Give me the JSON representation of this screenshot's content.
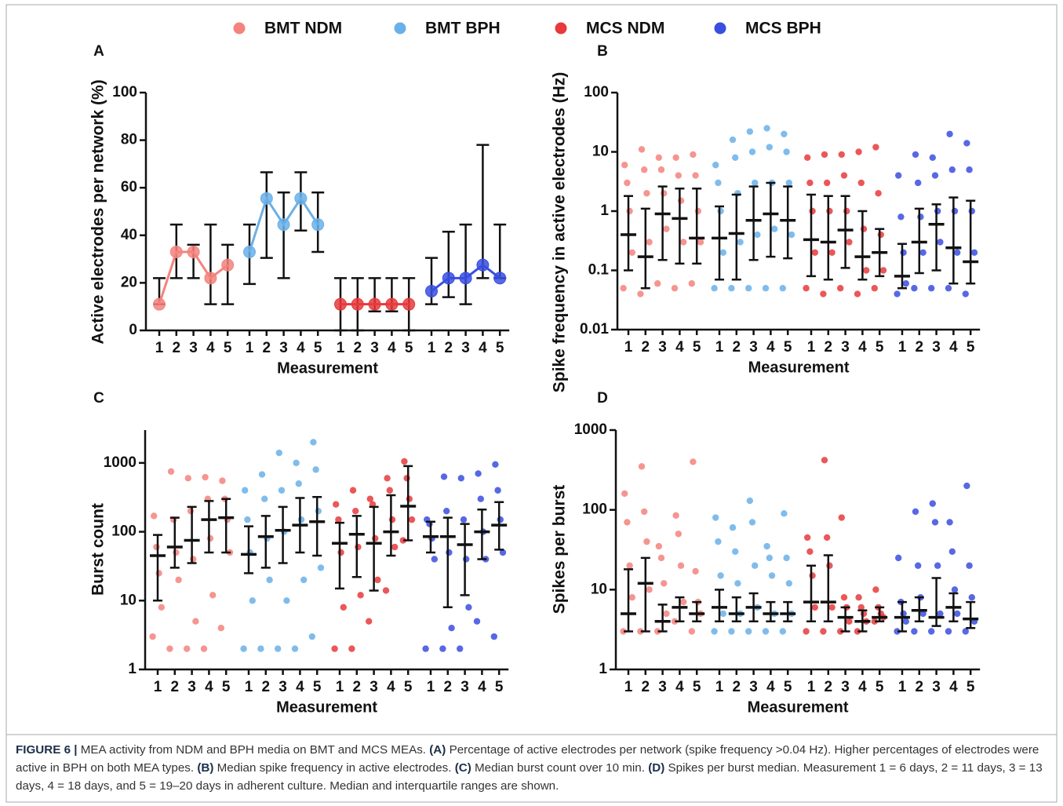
{
  "chart_data": [
    {
      "type": "line",
      "panel": "A",
      "ylabel": "Active electrodes per network (%)",
      "xlabel": "Measurement",
      "categories": [
        "1",
        "2",
        "3",
        "4",
        "5"
      ],
      "ylim": [
        0,
        100
      ],
      "yticks": [
        0,
        20,
        40,
        60,
        80,
        100
      ],
      "series": [
        {
          "name": "BMT NDM",
          "color": "#f4837d",
          "values": [
            11,
            33,
            33,
            22,
            27.5
          ],
          "err_low": [
            11,
            22,
            22,
            11,
            11
          ],
          "err_high": [
            22,
            44.5,
            36,
            44.5,
            36
          ]
        },
        {
          "name": "BMT BPH",
          "color": "#6ab0e8",
          "values": [
            33,
            55.5,
            44.5,
            55.5,
            44.5
          ],
          "err_low": [
            19.5,
            30.5,
            22,
            42,
            33
          ],
          "err_high": [
            44.5,
            66.5,
            58,
            66.5,
            58
          ]
        },
        {
          "name": "MCS NDM",
          "color": "#e8393c",
          "values": [
            11,
            11,
            11,
            11,
            11
          ],
          "err_low": [
            0,
            0,
            8,
            8,
            0
          ],
          "err_high": [
            22,
            22,
            22,
            22,
            22
          ]
        },
        {
          "name": "MCS BPH",
          "color": "#3a4ee0",
          "values": [
            16.5,
            22,
            22,
            27.5,
            22
          ],
          "err_low": [
            11,
            14,
            11,
            22,
            22
          ],
          "err_high": [
            30.5,
            41.5,
            44.5,
            78,
            44.5
          ]
        }
      ]
    },
    {
      "type": "dot_iqr",
      "panel": "B",
      "ylabel": "Spike frequency in active electrodes (Hz)",
      "xlabel": "Measurement",
      "categories": [
        "1",
        "2",
        "3",
        "4",
        "5"
      ],
      "ylog": true,
      "ylim": [
        0.01,
        100
      ],
      "yticks": [
        0.01,
        0.1,
        1,
        10,
        100
      ],
      "series": [
        {
          "color": "#f4837d",
          "median": [
            0.4,
            0.17,
            0.9,
            0.75,
            0.35
          ],
          "q1": [
            0.1,
            0.05,
            0.15,
            0.13,
            0.13
          ],
          "q3": [
            1.8,
            1.1,
            2.6,
            2.4,
            2.4
          ],
          "points": [
            [
              0.05,
              0.2,
              1,
              3,
              6
            ],
            [
              0.04,
              0.3,
              2,
              5,
              11
            ],
            [
              0.06,
              0.5,
              2,
              5,
              8
            ],
            [
              0.05,
              0.3,
              1.5,
              4,
              8
            ],
            [
              0.06,
              0.3,
              1,
              4,
              9
            ]
          ]
        },
        {
          "color": "#6ab0e8",
          "median": [
            0.35,
            0.42,
            0.7,
            0.9,
            0.7
          ],
          "q1": [
            0.07,
            0.07,
            0.15,
            0.17,
            0.16
          ],
          "q3": [
            1.2,
            1.9,
            2.6,
            3,
            2.6
          ],
          "points": [
            [
              0.05,
              0.2,
              1,
              3,
              6
            ],
            [
              0.05,
              0.3,
              2,
              8,
              16
            ],
            [
              0.05,
              0.4,
              3,
              10,
              22
            ],
            [
              0.05,
              0.5,
              3,
              12,
              25
            ],
            [
              0.05,
              0.4,
              3,
              10,
              20
            ]
          ]
        },
        {
          "color": "#e8393c",
          "median": [
            0.33,
            0.3,
            0.48,
            0.17,
            0.2
          ],
          "q1": [
            0.08,
            0.07,
            0.11,
            0.07,
            0.08
          ],
          "q3": [
            1.9,
            1.8,
            1.8,
            1,
            0.5
          ],
          "points": [
            [
              0.05,
              0.2,
              1,
              3,
              8
            ],
            [
              0.04,
              0.2,
              1,
              3,
              9
            ],
            [
              0.05,
              0.3,
              1,
              4,
              9
            ],
            [
              0.04,
              0.1,
              0.5,
              3,
              10
            ],
            [
              0.05,
              0.1,
              0.4,
              2,
              12
            ]
          ]
        },
        {
          "color": "#3a4ee0",
          "median": [
            0.08,
            0.3,
            0.6,
            0.24,
            0.14
          ],
          "q1": [
            0.05,
            0.09,
            0.1,
            0.06,
            0.06
          ],
          "q3": [
            0.28,
            1.1,
            1.3,
            1.7,
            1.5
          ],
          "points": [
            [
              0.04,
              0.06,
              0.2,
              0.8,
              4
            ],
            [
              0.05,
              0.2,
              0.8,
              3,
              9
            ],
            [
              0.05,
              0.3,
              1,
              4,
              8
            ],
            [
              0.05,
              0.2,
              1,
              5,
              20
            ],
            [
              0.04,
              0.2,
              1,
              5,
              14
            ]
          ]
        }
      ]
    },
    {
      "type": "dot_iqr",
      "panel": "C",
      "ylabel": "Burst count",
      "xlabel": "Measurement",
      "categories": [
        "1",
        "2",
        "3",
        "4",
        "5"
      ],
      "ylog": true,
      "ylim": [
        1,
        3000
      ],
      "yticks": [
        1,
        10,
        100,
        1000
      ],
      "series": [
        {
          "color": "#f4837d",
          "median": [
            45,
            60,
            75,
            150,
            160
          ],
          "q1": [
            10,
            30,
            35,
            50,
            50
          ],
          "q3": [
            90,
            160,
            230,
            280,
            300
          ],
          "points": [
            [
              3,
              8,
              25,
              60,
              170
            ],
            [
              2,
              20,
              50,
              150,
              750
            ],
            [
              2,
              5,
              40,
              200,
              600
            ],
            [
              2,
              12,
              80,
              300,
              620
            ],
            [
              4,
              50,
              150,
              300,
              550
            ]
          ]
        },
        {
          "color": "#6ab0e8",
          "median": [
            47,
            85,
            105,
            125,
            140
          ],
          "q1": [
            25,
            30,
            35,
            50,
            45
          ],
          "q3": [
            120,
            170,
            230,
            310,
            320
          ],
          "points": [
            [
              2,
              10,
              50,
              150,
              400
            ],
            [
              2,
              20,
              80,
              300,
              680
            ],
            [
              2,
              10,
              100,
              400,
              1400
            ],
            [
              2,
              20,
              150,
              500,
              1000
            ],
            [
              3,
              30,
              200,
              800,
              2000
            ]
          ]
        },
        {
          "color": "#e8393c",
          "median": [
            68,
            92,
            68,
            100,
            235
          ],
          "q1": [
            15,
            22,
            14,
            45,
            75
          ],
          "q3": [
            135,
            170,
            230,
            340,
            900
          ],
          "points": [
            [
              2,
              8,
              50,
              150,
              250
            ],
            [
              2,
              12,
              60,
              200,
              400
            ],
            [
              5,
              20,
              80,
              250,
              300
            ],
            [
              14,
              60,
              150,
              400,
              600
            ],
            [
              75,
              150,
              300,
              600,
              1050
            ]
          ]
        },
        {
          "color": "#3a4ee0",
          "median": [
            85,
            85,
            65,
            100,
            125
          ],
          "q1": [
            50,
            8,
            12,
            40,
            55
          ],
          "q3": [
            140,
            160,
            130,
            210,
            270
          ],
          "points": [
            [
              2,
              40,
              80,
              130,
              150
            ],
            [
              2,
              4,
              50,
              200,
              630
            ],
            [
              2,
              8,
              40,
              150,
              600
            ],
            [
              5,
              40,
              100,
              300,
              700
            ],
            [
              3,
              50,
              150,
              400,
              950
            ]
          ]
        }
      ]
    },
    {
      "type": "dot_iqr",
      "panel": "D",
      "ylabel": "Spikes per burst",
      "xlabel": "Measurement",
      "categories": [
        "1",
        "2",
        "3",
        "4",
        "5"
      ],
      "ylog": true,
      "ylim": [
        1,
        1000
      ],
      "yticks": [
        1,
        10,
        100,
        1000
      ],
      "series": [
        {
          "color": "#f4837d",
          "median": [
            5,
            12,
            4,
            6,
            5
          ],
          "q1": [
            3,
            3,
            3,
            4,
            4
          ],
          "q3": [
            18,
            25,
            6.5,
            8,
            7
          ],
          "points": [
            [
              3,
              8,
              20,
              70,
              160
            ],
            [
              3,
              10,
              40,
              95,
              350
            ],
            [
              3,
              5,
              12,
              25,
              35
            ],
            [
              4,
              7,
              20,
              50,
              85
            ],
            [
              3,
              5,
              7,
              17,
              400
            ]
          ]
        },
        {
          "color": "#6ab0e8",
          "median": [
            6,
            5,
            6,
            5,
            5
          ],
          "q1": [
            4,
            4,
            4,
            4,
            4
          ],
          "q3": [
            10,
            8,
            9,
            7,
            7
          ],
          "points": [
            [
              3,
              5,
              15,
              40,
              80
            ],
            [
              3,
              5,
              12,
              30,
              60
            ],
            [
              3,
              6,
              20,
              70,
              130
            ],
            [
              3,
              5,
              15,
              25,
              35
            ],
            [
              3,
              5,
              12,
              25,
              90
            ]
          ]
        },
        {
          "color": "#e8393c",
          "median": [
            7,
            7,
            4.5,
            4,
            4.5
          ],
          "q1": [
            4,
            4,
            3,
            3,
            4
          ],
          "q3": [
            20,
            27,
            6,
            5.5,
            6
          ],
          "points": [
            [
              3,
              6,
              15,
              30,
              45
            ],
            [
              3,
              6,
              20,
              45,
              420
            ],
            [
              3,
              4,
              6,
              8,
              80
            ],
            [
              3,
              4,
              5,
              6,
              8
            ],
            [
              4,
              4.5,
              5,
              6,
              10
            ]
          ]
        },
        {
          "color": "#3a4ee0",
          "median": [
            4.5,
            5.5,
            4.5,
            6,
            4.3
          ],
          "q1": [
            3,
            4,
            3.5,
            4,
            3.3
          ],
          "q3": [
            7,
            8,
            14,
            9,
            7
          ],
          "points": [
            [
              3,
              4,
              5,
              7,
              25
            ],
            [
              3,
              5,
              8,
              20,
              95
            ],
            [
              3,
              5,
              20,
              70,
              120
            ],
            [
              3,
              5,
              10,
              30,
              70
            ],
            [
              3,
              4,
              8,
              20,
              200
            ]
          ]
        }
      ]
    }
  ],
  "caption": {
    "runs": [
      {
        "text": "FIGURE 6 |",
        "bold": true
      },
      {
        "text": " MEA activity from NDM and BPH media on BMT and MCS MEAs. ",
        "bold": false
      },
      {
        "text": "(A)",
        "bold": true
      },
      {
        "text": " Percentage of active electrodes per network (spike frequency >0.04 Hz). Higher percentages of electrodes were active in BPH on both MEA types. ",
        "bold": false
      },
      {
        "text": "(B)",
        "bold": true
      },
      {
        "text": " Median spike frequency in active electrodes. ",
        "bold": false
      },
      {
        "text": "(C)",
        "bold": true
      },
      {
        "text": " Median burst count over 10 min. ",
        "bold": false
      },
      {
        "text": "(D)",
        "bold": true
      },
      {
        "text": " Spikes per burst median. Measurement 1 = 6 days, 2 = 11 days, 3 = 13 days, 4 = 18 days, and 5 = 19–20 days in adherent culture. Median and interquartile ranges are shown.",
        "bold": false
      }
    ]
  }
}
